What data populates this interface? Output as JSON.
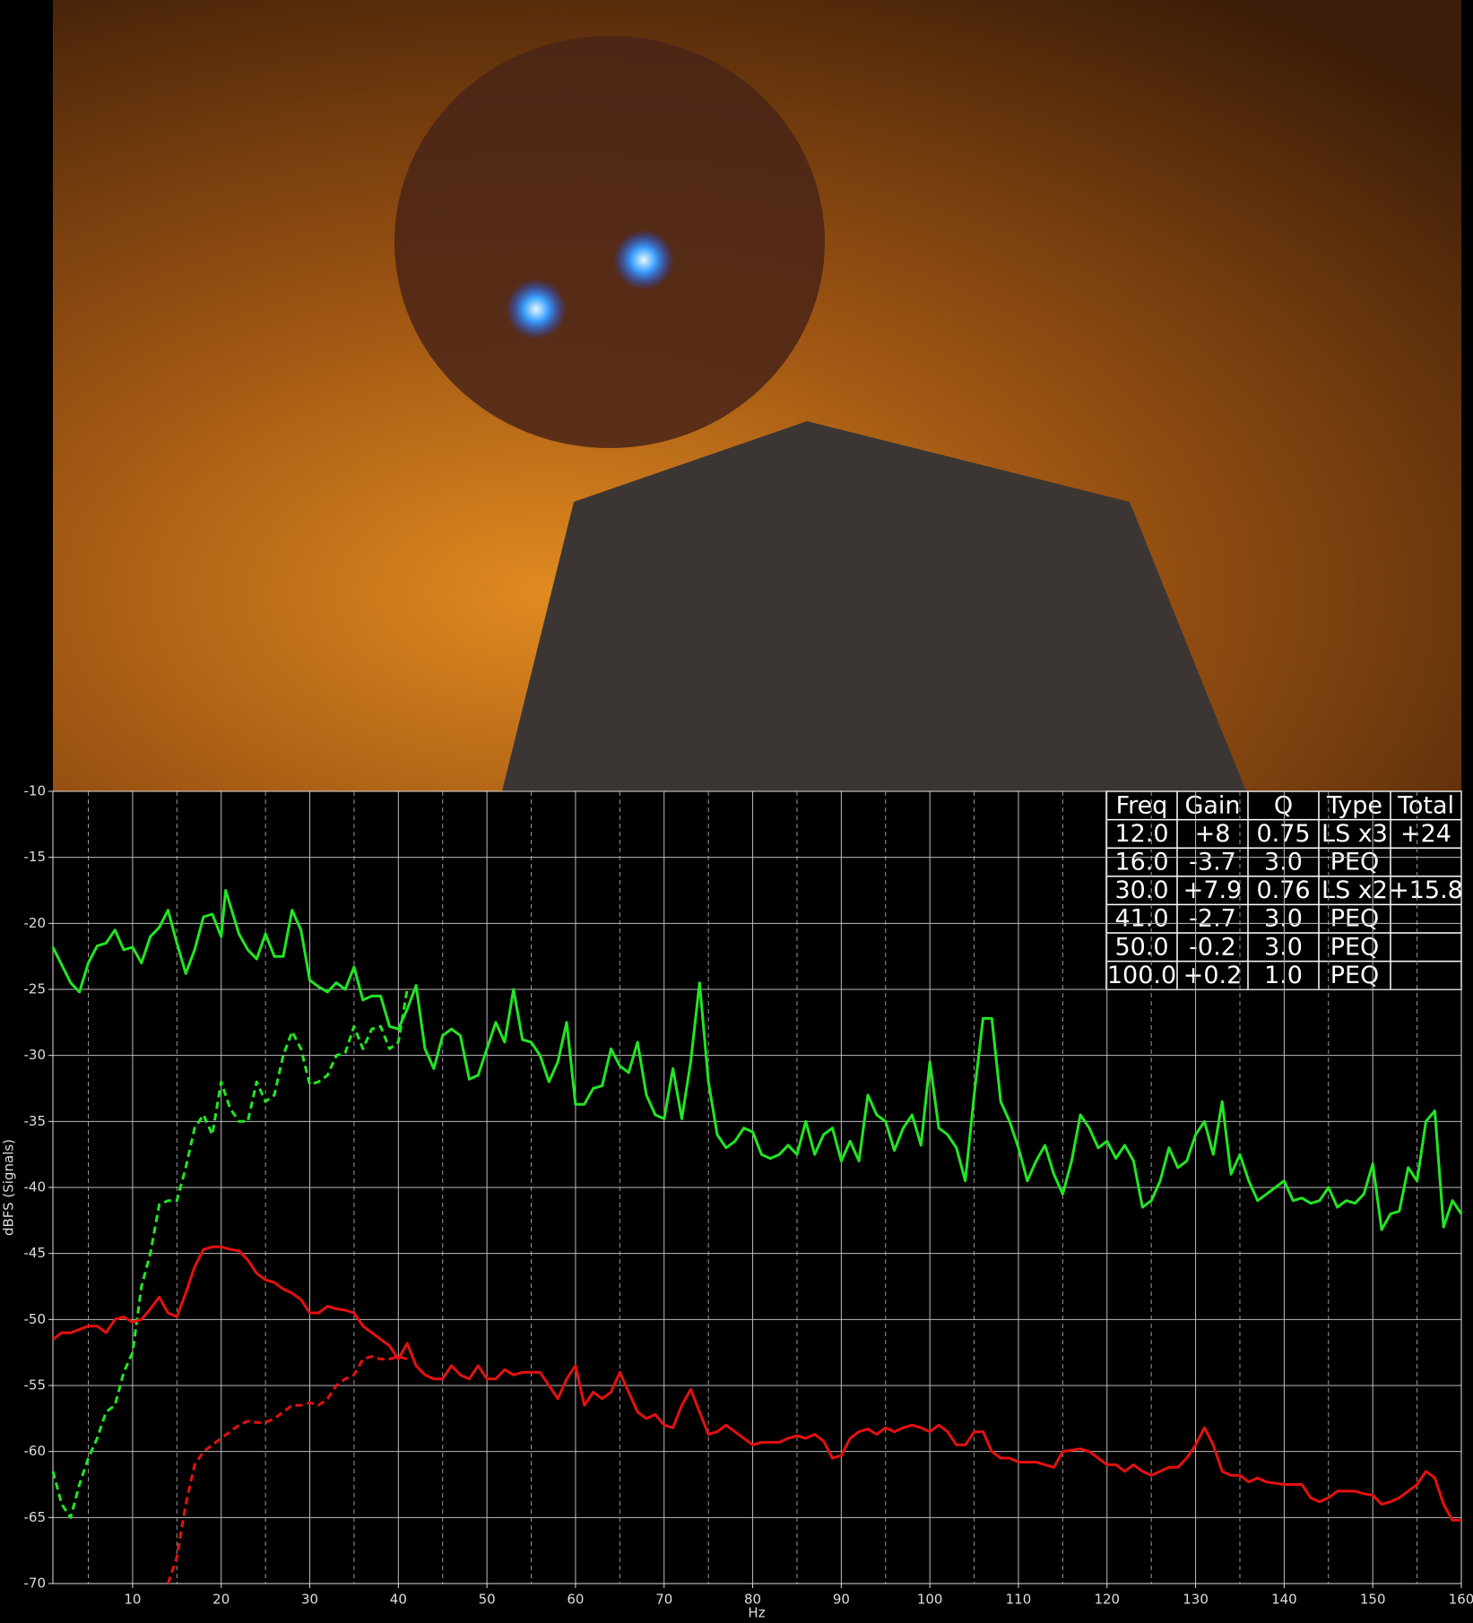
{
  "chart_data": {
    "type": "line",
    "xlabel": "Hz",
    "ylabel": "dBFS (Signals)",
    "xlim": [
      1,
      160
    ],
    "ylim": [
      -70,
      -10
    ],
    "xticks": [
      10,
      20,
      30,
      40,
      50,
      60,
      70,
      80,
      90,
      100,
      110,
      120,
      130,
      140,
      150,
      160
    ],
    "xminorticks": [
      5,
      15,
      25,
      35,
      45,
      55,
      65,
      75,
      85,
      95,
      105,
      115,
      125,
      135,
      145,
      155
    ],
    "yticks": [
      -70,
      -65,
      -60,
      -55,
      -50,
      -45,
      -40,
      -35,
      -30,
      -25,
      -20,
      -15,
      -10
    ],
    "grid": true,
    "series": [
      {
        "color": "#22e622",
        "dashed": false,
        "x": [
          1,
          3,
          4,
          5,
          6,
          7,
          8,
          9,
          10,
          11,
          12,
          13,
          14,
          15,
          16,
          17,
          18,
          19,
          20,
          20.5,
          22,
          23,
          24,
          25,
          26,
          27,
          28,
          29,
          30,
          31,
          32,
          33,
          34,
          35,
          36,
          37,
          38,
          39,
          40,
          41,
          42,
          43,
          44,
          45,
          46,
          47,
          48,
          49,
          50,
          51,
          52,
          53,
          54,
          55,
          56,
          57,
          58,
          59,
          60,
          61,
          62,
          63,
          64,
          65,
          66,
          67,
          68,
          69,
          70,
          71,
          72,
          73,
          74,
          75,
          76,
          77,
          78,
          79,
          80,
          81,
          82,
          83,
          84,
          85,
          86,
          87,
          88,
          89,
          90,
          91,
          92,
          93,
          94,
          95,
          96,
          97,
          98,
          99,
          100,
          101,
          102,
          103,
          104,
          105,
          106,
          107,
          108,
          109,
          110,
          111,
          112,
          113,
          114,
          115,
          116,
          117,
          118,
          119,
          120,
          121,
          122,
          123,
          124,
          125,
          126,
          127,
          128,
          129,
          130,
          131,
          132,
          133,
          134,
          135,
          136,
          137,
          138,
          139,
          140,
          141,
          142,
          143,
          144,
          145,
          146,
          147,
          148,
          149,
          150,
          151,
          152,
          153,
          154,
          155,
          156,
          157,
          158,
          159,
          160
        ],
        "values": [
          -21.8,
          -24.5,
          -25.2,
          -23,
          -21.7,
          -21.5,
          -20.5,
          -22,
          -21.8,
          -23,
          -21,
          -20.3,
          -19,
          -21.5,
          -23.8,
          -22,
          -19.5,
          -19.3,
          -21,
          -17.5,
          -20.8,
          -22,
          -22.7,
          -20.8,
          -22.5,
          -22.5,
          -19,
          -20.5,
          -24.3,
          -24.8,
          -25.2,
          -24.5,
          -25,
          -23.3,
          -25.8,
          -25.5,
          -25.5,
          -27.8,
          -28,
          -26.5,
          -24.7,
          -29.5,
          -31,
          -28.5,
          -28,
          -28.5,
          -31.8,
          -31.5,
          -29.5,
          -27.5,
          -29,
          -25,
          -28.8,
          -29,
          -30,
          -32,
          -30.5,
          -27.5,
          -33.7,
          -33.7,
          -32.5,
          -32.3,
          -29.5,
          -30.8,
          -31.3,
          -29,
          -33,
          -34.5,
          -34.8,
          -31,
          -34.8,
          -30.5,
          -24.5,
          -32,
          -36,
          -37,
          -36.5,
          -35.5,
          -35.8,
          -37.5,
          -37.8,
          -37.5,
          -36.8,
          -37.5,
          -35,
          -37.5,
          -36,
          -35.5,
          -38,
          -36.5,
          -38,
          -33,
          -34.5,
          -35,
          -37.2,
          -35.5,
          -34.5,
          -36.8,
          -30.5,
          -35.5,
          -36,
          -37,
          -39.5,
          -33,
          -27.2,
          -27.2,
          -33.5,
          -35,
          -37,
          -39.5,
          -38,
          -36.8,
          -39,
          -40.5,
          -38,
          -34.5,
          -35.5,
          -37,
          -36.5,
          -37.8,
          -36.8,
          -38,
          -41.5,
          -41,
          -39.5,
          -37,
          -38.5,
          -38,
          -36,
          -35,
          -37.5,
          -33.5,
          -39,
          -37.5,
          -39.5,
          -41,
          -40.5,
          -40,
          -39.5,
          -41,
          -40.8,
          -41.2,
          -41,
          -40,
          -41.5,
          -41,
          -41.2,
          -40.5,
          -38.2,
          -43.2,
          -42,
          -41.8,
          -38.5,
          -39.5,
          -35,
          -34.2,
          -43,
          -41,
          -42
        ]
      },
      {
        "color": "#22e622",
        "dashed": true,
        "x": [
          1,
          2,
          3,
          4,
          5,
          6,
          7,
          8,
          9,
          10,
          11,
          12,
          13,
          14,
          15,
          16,
          17,
          18,
          19,
          20,
          21,
          22,
          23,
          24,
          25,
          26,
          27,
          28,
          29,
          30,
          31,
          32,
          33,
          34,
          35,
          36,
          37,
          38,
          39,
          40,
          41
        ],
        "values": [
          -61.5,
          -64,
          -65,
          -62.5,
          -60.5,
          -59,
          -57,
          -56.5,
          -54,
          -52.5,
          -47.5,
          -45,
          -41.3,
          -41,
          -41,
          -38.5,
          -35.5,
          -34.5,
          -36,
          -32,
          -34,
          -35,
          -35,
          -32,
          -33.5,
          -33,
          -30,
          -28.2,
          -29.5,
          -32.2,
          -32,
          -31.5,
          -30,
          -29.8,
          -27.8,
          -29.5,
          -28,
          -27.8,
          -29.5,
          -29,
          -25
        ]
      },
      {
        "color": "#e61010",
        "dashed": false,
        "x": [
          1,
          2,
          3,
          5,
          6,
          7,
          8,
          9,
          10,
          11,
          12,
          13,
          14,
          15,
          16,
          17,
          18,
          19,
          20,
          21,
          22,
          23,
          24,
          25,
          26,
          27,
          28,
          29,
          30,
          31,
          32,
          33,
          34,
          35,
          36,
          37,
          38,
          39,
          40,
          41,
          42,
          43,
          44,
          45,
          46,
          47,
          48,
          49,
          50,
          51,
          52,
          53,
          54,
          55,
          56,
          57,
          58,
          59,
          60,
          61,
          62,
          63,
          64,
          65,
          66,
          67,
          68,
          69,
          70,
          71,
          72,
          73,
          74,
          75,
          76,
          77,
          78,
          79,
          80,
          81,
          82,
          83,
          84,
          85,
          86,
          87,
          88,
          89,
          90,
          91,
          92,
          93,
          94,
          95,
          96,
          97,
          98,
          99,
          100,
          101,
          102,
          103,
          104,
          105,
          106,
          107,
          108,
          109,
          110,
          112,
          114,
          115,
          117,
          118,
          119,
          120,
          121,
          122,
          123,
          124,
          125,
          126,
          127,
          128,
          129,
          130,
          131,
          132,
          133,
          134,
          135,
          136,
          137,
          138,
          140,
          142,
          143,
          144,
          145,
          146,
          148,
          149,
          150,
          151,
          152,
          153,
          154,
          155,
          156,
          157,
          158,
          159,
          160
        ],
        "values": [
          -51.5,
          -51,
          -51,
          -50.5,
          -50.5,
          -51,
          -50,
          -49.8,
          -50.2,
          -50,
          -49.2,
          -48.3,
          -49.5,
          -49.8,
          -48,
          -46,
          -44.7,
          -44.5,
          -44.5,
          -44.7,
          -44.8,
          -45.5,
          -46.5,
          -47,
          -47.2,
          -47.7,
          -48,
          -48.5,
          -49.5,
          -49.5,
          -49,
          -49.2,
          -49.3,
          -49.5,
          -50.5,
          -51,
          -51.5,
          -52,
          -53,
          -51.8,
          -53.5,
          -54.2,
          -54.5,
          -54.5,
          -53.5,
          -54.2,
          -54.5,
          -53.5,
          -54.5,
          -54.5,
          -53.8,
          -54.2,
          -54,
          -54,
          -54,
          -55,
          -56,
          -54.5,
          -53.5,
          -56.5,
          -55.5,
          -56,
          -55.5,
          -54,
          -55.5,
          -57,
          -57.5,
          -57.2,
          -58,
          -58.2,
          -56.5,
          -55.3,
          -57,
          -58.7,
          -58.5,
          -58,
          -58.5,
          -59,
          -59.5,
          -59.3,
          -59.3,
          -59.3,
          -59,
          -58.8,
          -59,
          -58.7,
          -59.2,
          -60.5,
          -60.3,
          -59,
          -58.5,
          -58.3,
          -58.7,
          -58.2,
          -58.5,
          -58.2,
          -58,
          -58.2,
          -58.5,
          -58,
          -58.5,
          -59.5,
          -59.5,
          -58.5,
          -58.5,
          -60,
          -60.5,
          -60.5,
          -60.8,
          -60.8,
          -61.2,
          -60,
          -59.8,
          -60,
          -60.5,
          -61,
          -61,
          -61.5,
          -61,
          -61.5,
          -61.8,
          -61.5,
          -61.2,
          -61.2,
          -60.5,
          -59.5,
          -58.2,
          -59.5,
          -61.5,
          -61.8,
          -61.8,
          -62.3,
          -62,
          -62.3,
          -62.5,
          -62.5,
          -63.5,
          -63.8,
          -63.5,
          -63,
          -63,
          -63.2,
          -63.3,
          -64,
          -63.8,
          -63.5,
          -63,
          -62.5,
          -61.5,
          -62,
          -64,
          -65.2,
          -65.2
        ]
      },
      {
        "color": "#e61010",
        "dashed": true,
        "x": [
          14,
          15,
          16,
          17,
          18,
          19,
          20,
          21,
          22,
          23,
          24,
          25,
          26,
          27,
          28,
          29,
          30,
          31,
          32,
          33,
          34,
          35,
          36,
          37,
          38,
          39,
          40,
          41
        ],
        "values": [
          -70,
          -68,
          -64,
          -61,
          -60,
          -59.5,
          -59,
          -58.5,
          -58,
          -57.7,
          -57.8,
          -57.8,
          -57.5,
          -57,
          -56.5,
          -56.5,
          -56.3,
          -56.5,
          -56,
          -55,
          -54.5,
          -54.2,
          -53,
          -52.8,
          -53,
          -53,
          -52.8,
          -53
        ]
      }
    ],
    "table": {
      "columns": [
        "Freq",
        "Gain",
        "Q",
        "Type",
        "Total"
      ],
      "rows": [
        [
          "12.0",
          "+8",
          "0.75",
          "LS x3",
          "+24"
        ],
        [
          "16.0",
          "-3.7",
          "3.0",
          "PEQ"
        ],
        [
          "30.0",
          "+7.9",
          "0.76",
          "LS x2",
          "+15.8"
        ],
        [
          "41.0",
          "-2.7",
          "3.0",
          "PEQ"
        ],
        [
          "50.0",
          "-0.2",
          "3.0",
          "PEQ"
        ],
        [
          "100.0",
          "+0.2",
          "1.0",
          "PEQ"
        ]
      ]
    }
  }
}
